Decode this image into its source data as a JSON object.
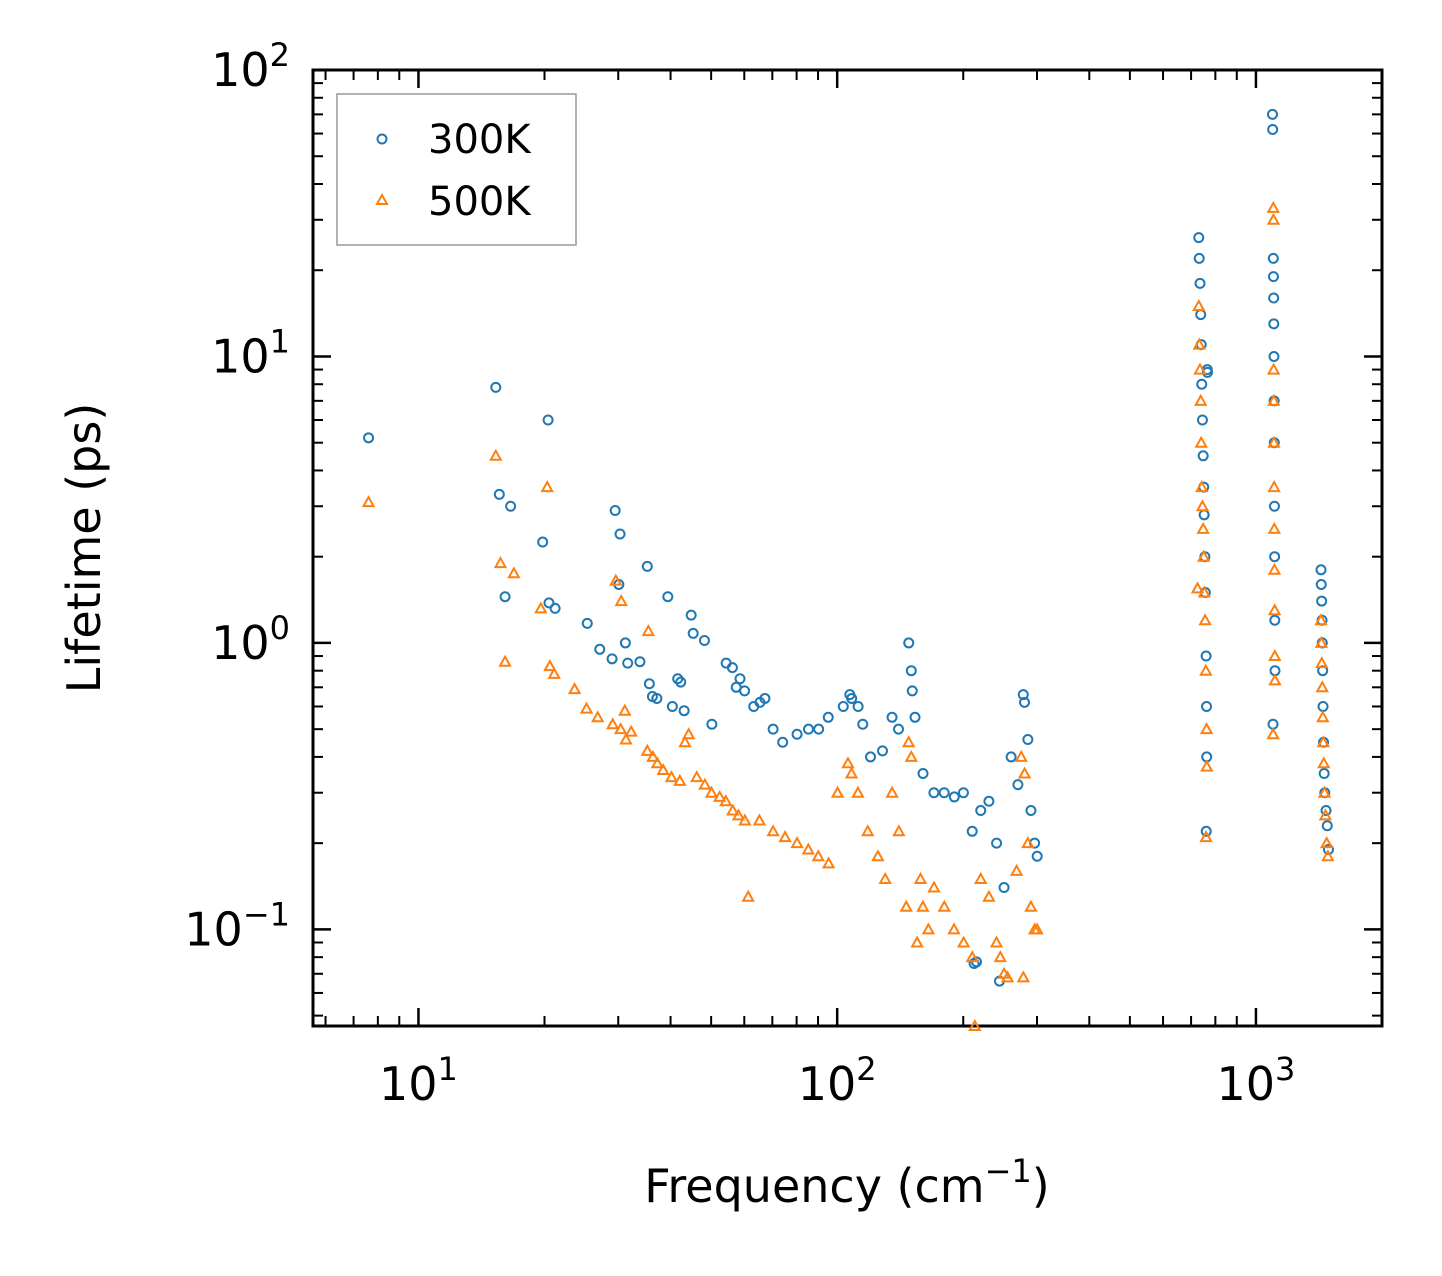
{
  "chart_data": {
    "type": "scatter",
    "title": "",
    "xlabel": "Frequency (cm",
    "xlabel_sup": "−1",
    "xlabel_close": ")",
    "ylabel": "Lifetime (ps)",
    "xscale": "log",
    "yscale": "log",
    "xlim": [
      5.6,
      2000
    ],
    "ylim": [
      0.046,
      100
    ],
    "legend_location": "upper-left",
    "x_ticks": [
      {
        "value": 10,
        "base": "10",
        "exp": "1"
      },
      {
        "value": 100,
        "base": "10",
        "exp": "2"
      },
      {
        "value": 1000,
        "base": "10",
        "exp": "3"
      }
    ],
    "y_ticks": [
      {
        "value": 0.1,
        "base": "10",
        "exp": "−1"
      },
      {
        "value": 1,
        "base": "10",
        "exp": "0"
      },
      {
        "value": 10,
        "base": "10",
        "exp": "1"
      },
      {
        "value": 100,
        "base": "10",
        "exp": "2"
      }
    ],
    "series": [
      {
        "name": "300K",
        "marker": "circle",
        "color": "#1f77b4",
        "points": [
          [
            7.6,
            5.2
          ],
          [
            15.3,
            7.8
          ],
          [
            20.4,
            6.0
          ],
          [
            15.6,
            3.3
          ],
          [
            16.6,
            3.0
          ],
          [
            19.8,
            2.25
          ],
          [
            20.5,
            1.38
          ],
          [
            21.2,
            1.32
          ],
          [
            16.1,
            1.45
          ],
          [
            25.3,
            1.17
          ],
          [
            27.1,
            0.95
          ],
          [
            29.0,
            0.88
          ],
          [
            29.5,
            2.9
          ],
          [
            30.3,
            2.4
          ],
          [
            30.1,
            1.6
          ],
          [
            31.2,
            1.0
          ],
          [
            31.6,
            0.85
          ],
          [
            33.8,
            0.86
          ],
          [
            35.2,
            1.85
          ],
          [
            35.6,
            0.72
          ],
          [
            36.2,
            0.65
          ],
          [
            37.1,
            0.64
          ],
          [
            39.4,
            1.45
          ],
          [
            40.4,
            0.6
          ],
          [
            41.6,
            0.75
          ],
          [
            42.3,
            0.73
          ],
          [
            43.1,
            0.58
          ],
          [
            44.8,
            1.25
          ],
          [
            45.3,
            1.08
          ],
          [
            48.2,
            1.02
          ],
          [
            50.2,
            0.52
          ],
          [
            54.3,
            0.85
          ],
          [
            56.2,
            0.82
          ],
          [
            57.4,
            0.7
          ],
          [
            58.6,
            0.75
          ],
          [
            60.1,
            0.68
          ],
          [
            63.2,
            0.6
          ],
          [
            65.4,
            0.62
          ],
          [
            67.2,
            0.64
          ],
          [
            70.3,
            0.5
          ],
          [
            74.1,
            0.45
          ],
          [
            80.2,
            0.48
          ],
          [
            85.4,
            0.5
          ],
          [
            90.3,
            0.5
          ],
          [
            95.2,
            0.55
          ],
          [
            103.4,
            0.6
          ],
          [
            107.2,
            0.66
          ],
          [
            108.3,
            0.64
          ],
          [
            112.2,
            0.6
          ],
          [
            115.1,
            0.52
          ],
          [
            120.1,
            0.4
          ],
          [
            128.3,
            0.42
          ],
          [
            135.2,
            0.55
          ],
          [
            140.1,
            0.5
          ],
          [
            148.2,
            1.0
          ],
          [
            150.3,
            0.8
          ],
          [
            151.1,
            0.68
          ],
          [
            153.4,
            0.55
          ],
          [
            160.3,
            0.35
          ],
          [
            170.2,
            0.3
          ],
          [
            180.1,
            0.3
          ],
          [
            190.4,
            0.29
          ],
          [
            200.2,
            0.3
          ],
          [
            210.1,
            0.22
          ],
          [
            212.3,
            0.076
          ],
          [
            215.1,
            0.077
          ],
          [
            220.2,
            0.26
          ],
          [
            230.3,
            0.28
          ],
          [
            240.2,
            0.2
          ],
          [
            244.1,
            0.066
          ],
          [
            250.3,
            0.14
          ],
          [
            260.2,
            0.4
          ],
          [
            270.1,
            0.32
          ],
          [
            278.2,
            0.66
          ],
          [
            280.1,
            0.62
          ],
          [
            285.3,
            0.46
          ],
          [
            290.2,
            0.26
          ],
          [
            296.1,
            0.2
          ],
          [
            300.3,
            0.18
          ],
          [
            730.2,
            26
          ],
          [
            732.1,
            22
          ],
          [
            735.3,
            18
          ],
          [
            738.1,
            14
          ],
          [
            740.2,
            11
          ],
          [
            742.3,
            8
          ],
          [
            745.1,
            6
          ],
          [
            748.2,
            4.5
          ],
          [
            750.3,
            3.5
          ],
          [
            752.1,
            2.8
          ],
          [
            755.2,
            2.0
          ],
          [
            757.1,
            1.5
          ],
          [
            760.3,
            0.9
          ],
          [
            762.1,
            0.6
          ],
          [
            762.8,
            0.4
          ],
          [
            760.9,
            0.22
          ],
          [
            765.2,
            9
          ],
          [
            766.1,
            8.8
          ],
          [
            1095.2,
            70
          ],
          [
            1096.3,
            62
          ],
          [
            1100.1,
            22
          ],
          [
            1101.2,
            19
          ],
          [
            1102.3,
            16
          ],
          [
            1103.1,
            13
          ],
          [
            1104.2,
            10
          ],
          [
            1105.3,
            7
          ],
          [
            1106.1,
            5
          ],
          [
            1107.2,
            3
          ],
          [
            1108.1,
            2
          ],
          [
            1109.3,
            1.2
          ],
          [
            1110.2,
            0.8
          ],
          [
            1098.4,
            0.52
          ],
          [
            1430.2,
            1.8
          ],
          [
            1432.1,
            1.6
          ],
          [
            1435.3,
            1.4
          ],
          [
            1438.2,
            1.2
          ],
          [
            1440.1,
            1.0
          ],
          [
            1443.2,
            0.8
          ],
          [
            1446.1,
            0.6
          ],
          [
            1450.3,
            0.45
          ],
          [
            1455.2,
            0.35
          ],
          [
            1460.1,
            0.3
          ],
          [
            1470.3,
            0.26
          ],
          [
            1480.2,
            0.23
          ],
          [
            1490.1,
            0.19
          ]
        ]
      },
      {
        "name": "500K",
        "marker": "triangle",
        "color": "#ff7f0e",
        "points": [
          [
            7.6,
            3.1
          ],
          [
            15.3,
            4.5
          ],
          [
            15.7,
            1.9
          ],
          [
            16.9,
            1.75
          ],
          [
            16.1,
            0.86
          ],
          [
            19.6,
            1.32
          ],
          [
            20.3,
            3.5
          ],
          [
            20.6,
            0.83
          ],
          [
            21.1,
            0.78
          ],
          [
            23.6,
            0.69
          ],
          [
            25.2,
            0.59
          ],
          [
            26.8,
            0.55
          ],
          [
            29.1,
            0.52
          ],
          [
            29.6,
            1.65
          ],
          [
            30.5,
            1.4
          ],
          [
            31.1,
            0.58
          ],
          [
            30.4,
            0.5
          ],
          [
            31.3,
            0.46
          ],
          [
            32.2,
            0.49
          ],
          [
            35.4,
            1.1
          ],
          [
            35.2,
            0.42
          ],
          [
            36.3,
            0.4
          ],
          [
            37.2,
            0.38
          ],
          [
            38.4,
            0.36
          ],
          [
            40.2,
            0.34
          ],
          [
            42.1,
            0.33
          ],
          [
            43.3,
            0.45
          ],
          [
            44.2,
            0.48
          ],
          [
            46.2,
            0.34
          ],
          [
            48.3,
            0.32
          ],
          [
            50.1,
            0.3
          ],
          [
            52.4,
            0.29
          ],
          [
            54.2,
            0.28
          ],
          [
            56.3,
            0.26
          ],
          [
            58.1,
            0.25
          ],
          [
            60.2,
            0.24
          ],
          [
            61.3,
            0.13
          ],
          [
            65.2,
            0.24
          ],
          [
            70.3,
            0.22
          ],
          [
            75.1,
            0.21
          ],
          [
            80.2,
            0.2
          ],
          [
            85.3,
            0.19
          ],
          [
            90.1,
            0.18
          ],
          [
            95.4,
            0.17
          ],
          [
            100.2,
            0.3
          ],
          [
            106.1,
            0.38
          ],
          [
            108.2,
            0.35
          ],
          [
            112.1,
            0.3
          ],
          [
            118.3,
            0.22
          ],
          [
            125.1,
            0.18
          ],
          [
            130.2,
            0.15
          ],
          [
            135.3,
            0.3
          ],
          [
            140.4,
            0.22
          ],
          [
            146.2,
            0.12
          ],
          [
            148.1,
            0.45
          ],
          [
            150.3,
            0.4
          ],
          [
            155.2,
            0.09
          ],
          [
            158.1,
            0.15
          ],
          [
            160.2,
            0.12
          ],
          [
            165.1,
            0.1
          ],
          [
            170.3,
            0.14
          ],
          [
            180.2,
            0.12
          ],
          [
            190.1,
            0.1
          ],
          [
            200.4,
            0.09
          ],
          [
            210.2,
            0.08
          ],
          [
            213.1,
            0.046
          ],
          [
            220.2,
            0.15
          ],
          [
            230.3,
            0.13
          ],
          [
            240.1,
            0.09
          ],
          [
            245.2,
            0.08
          ],
          [
            250.3,
            0.07
          ],
          [
            255.1,
            0.068
          ],
          [
            268.2,
            0.16
          ],
          [
            275.1,
            0.4
          ],
          [
            280.2,
            0.35
          ],
          [
            285.3,
            0.2
          ],
          [
            290.1,
            0.12
          ],
          [
            296.2,
            0.1
          ],
          [
            300.1,
            0.1
          ],
          [
            278.3,
            0.068
          ],
          [
            725.1,
            1.55
          ],
          [
            730.2,
            15
          ],
          [
            732.3,
            11
          ],
          [
            735.1,
            9
          ],
          [
            738.2,
            7
          ],
          [
            740.1,
            5
          ],
          [
            742.3,
            3.5
          ],
          [
            745.2,
            3
          ],
          [
            748.1,
            2.5
          ],
          [
            750.3,
            2
          ],
          [
            753.1,
            1.5
          ],
          [
            756.2,
            1.2
          ],
          [
            759.1,
            0.8
          ],
          [
            762.3,
            0.5
          ],
          [
            763.1,
            0.37
          ],
          [
            760.2,
            0.21
          ],
          [
            1100.2,
            33
          ],
          [
            1101.1,
            30
          ],
          [
            1102.3,
            9
          ],
          [
            1103.2,
            7
          ],
          [
            1104.1,
            5
          ],
          [
            1105.3,
            3.5
          ],
          [
            1106.2,
            2.5
          ],
          [
            1107.1,
            1.8
          ],
          [
            1108.3,
            1.3
          ],
          [
            1109.2,
            0.9
          ],
          [
            1110.1,
            0.74
          ],
          [
            1099.2,
            0.48
          ],
          [
            1430.1,
            1.2
          ],
          [
            1433.2,
            1.0
          ],
          [
            1436.3,
            0.85
          ],
          [
            1440.2,
            0.7
          ],
          [
            1444.1,
            0.55
          ],
          [
            1448.3,
            0.45
          ],
          [
            1452.2,
            0.38
          ],
          [
            1458.1,
            0.3
          ],
          [
            1465.2,
            0.25
          ],
          [
            1475.3,
            0.2
          ],
          [
            1485.1,
            0.18
          ]
        ]
      }
    ]
  }
}
